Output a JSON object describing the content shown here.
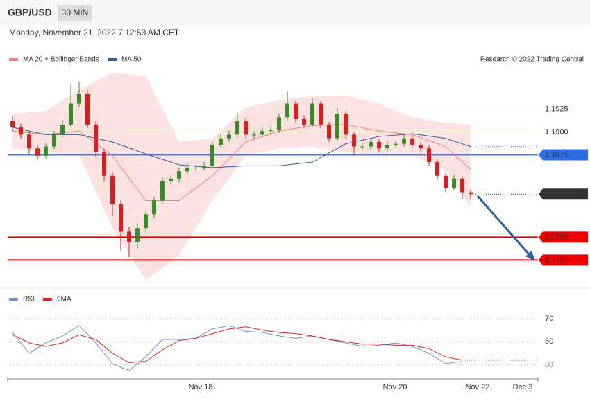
{
  "header": {
    "symbol": "GBP/USD",
    "timeframe": "30 MIN"
  },
  "timestamp": "Monday, November 21, 2022 7:12:53 AM CET",
  "credit": "Research © 2022 Trading Central",
  "chart_data": [
    {
      "type": "candlestick",
      "open": [
        1.1912,
        1.1905,
        1.1897,
        1.1882,
        1.1874,
        1.1884,
        1.1897,
        1.1908,
        1.1931,
        1.1942,
        1.1908,
        1.1878,
        1.1852,
        1.1821,
        1.1791,
        1.178,
        1.1795,
        1.181,
        1.1825,
        1.1846,
        1.1849,
        1.1857,
        1.1861,
        1.1861,
        1.1863,
        1.1886,
        1.1893,
        1.1897,
        1.1912,
        1.1897,
        1.1897,
        1.1901,
        1.1902,
        1.1916,
        1.1931,
        1.1914,
        1.1908,
        1.1931,
        1.1908,
        1.1893,
        1.192,
        1.1897,
        1.1884,
        1.1884,
        1.1889,
        1.1882,
        1.1886,
        1.1887,
        1.1893,
        1.1886,
        1.1882,
        1.1867,
        1.1852,
        1.1839,
        1.1849,
        1.1834
      ],
      "high": [
        1.1917,
        1.1909,
        1.19,
        1.1886,
        1.1888,
        1.1901,
        1.1913,
        1.1952,
        1.1955,
        1.1946,
        1.1912,
        1.1882,
        1.1856,
        1.1825,
        1.1796,
        1.18,
        1.1814,
        1.1829,
        1.185,
        1.1853,
        1.1861,
        1.1865,
        1.1864,
        1.1867,
        1.189,
        1.1897,
        1.1902,
        1.1921,
        1.1915,
        1.1901,
        1.1905,
        1.1906,
        1.192,
        1.1944,
        1.1934,
        1.1918,
        1.1937,
        1.1934,
        1.1911,
        1.1926,
        1.1923,
        1.19,
        1.1888,
        1.1893,
        1.1892,
        1.189,
        1.189,
        1.1897,
        1.1896,
        1.1889,
        1.1885,
        1.187,
        1.1855,
        1.1853,
        1.1852,
        1.1836
      ],
      "low": [
        1.1901,
        1.1893,
        1.1876,
        1.1869,
        1.1871,
        1.1881,
        1.1894,
        1.1905,
        1.1927,
        1.1904,
        1.1873,
        1.1846,
        1.1808,
        1.177,
        1.1763,
        1.1772,
        1.179,
        1.1806,
        1.1822,
        1.1843,
        1.1845,
        1.1854,
        1.1857,
        1.1858,
        1.186,
        1.1883,
        1.1889,
        1.1894,
        1.1893,
        1.1892,
        1.1894,
        1.1897,
        1.1899,
        1.1912,
        1.191,
        1.1904,
        1.1905,
        1.1904,
        1.1889,
        1.189,
        1.1893,
        1.1874,
        1.188,
        1.188,
        1.1878,
        1.1879,
        1.1883,
        1.1884,
        1.1883,
        1.1878,
        1.1863,
        1.1848,
        1.1834,
        1.1836,
        1.1826,
        1.1826
      ],
      "close": [
        1.1905,
        1.1897,
        1.1882,
        1.1874,
        1.1884,
        1.1897,
        1.1908,
        1.1931,
        1.1942,
        1.1908,
        1.1878,
        1.1852,
        1.1821,
        1.1791,
        1.178,
        1.1795,
        1.181,
        1.1825,
        1.1846,
        1.1849,
        1.1857,
        1.1861,
        1.1861,
        1.1863,
        1.1886,
        1.1893,
        1.1897,
        1.1912,
        1.1897,
        1.1897,
        1.1901,
        1.1902,
        1.1916,
        1.1931,
        1.1914,
        1.1908,
        1.1931,
        1.1908,
        1.1893,
        1.192,
        1.1897,
        1.1884,
        1.1884,
        1.1889,
        1.1882,
        1.1886,
        1.1887,
        1.1893,
        1.1886,
        1.1882,
        1.1867,
        1.1852,
        1.1839,
        1.1849,
        1.1834,
        1.1832
      ],
      "up_color": "#3b8a2a",
      "down_color": "#d81e1e",
      "series": [
        {
          "name": "MA 20 + Bollinger Bands",
          "color": "#f08080",
          "band_color": "#fde2e2",
          "values": [
            1.1901,
            1.1897,
            1.1901,
            1.1874,
            1.1825,
            1.1825,
            1.1852,
            1.1889,
            1.1901,
            1.1907,
            1.1908,
            1.1901,
            1.1897,
            1.1884,
            1.1859
          ],
          "upper": [
            1.192,
            1.1923,
            1.1946,
            1.1965,
            1.1961,
            1.1889,
            1.1893,
            1.1927,
            1.1935,
            1.1939,
            1.194,
            1.1931,
            1.1916,
            1.191,
            1.1908
          ],
          "lower": [
            1.1882,
            1.1878,
            1.1874,
            1.1795,
            1.1738,
            1.1765,
            1.1825,
            1.1874,
            1.1882,
            1.1884,
            1.1878,
            1.1874,
            1.1874,
            1.1859,
            1.1818
          ]
        },
        {
          "name": "MA 50",
          "color": "#2c5e9e",
          "values": [
            1.1905,
            1.1897,
            1.1897,
            1.1889,
            1.1876,
            1.1864,
            1.1861,
            1.1863,
            1.1863,
            1.1867,
            1.1887,
            1.1895,
            1.1898,
            1.1893,
            1.1884
          ]
        }
      ],
      "levels": [
        {
          "value": 1.1925,
          "color": "#d3ddb5",
          "label_color": "#4a9a1a"
        },
        {
          "value": 1.19,
          "label": "1.1900",
          "color": "#d3ddb5",
          "label_color": "#4a9a1a"
        },
        {
          "value": 1.1875,
          "color": "#4a7ee6",
          "tag": "#2f6fe6"
        },
        {
          "value": 1.1785,
          "color": "#e60000",
          "tag": "#ee0000"
        },
        {
          "value": 1.176,
          "label": "1.1760",
          "color": "#e60000",
          "tag": "#ee0000"
        }
      ],
      "ylim": [
        1.173,
        1.197
      ],
      "xtick_labels": [
        "Nov 18",
        "Nov 20",
        "Nov 22",
        "Dec 3"
      ]
    },
    {
      "type": "line",
      "series": [
        {
          "name": "RSI",
          "color": "#6b8fd8",
          "values": [
            58,
            40,
            49,
            55,
            64,
            49,
            31,
            25,
            37,
            52,
            52,
            53,
            61,
            64,
            59,
            58,
            55,
            53,
            55,
            52,
            49,
            46,
            47,
            49,
            46,
            40,
            31,
            33
          ]
        },
        {
          "name": "9MA",
          "color": "#e02020",
          "values": [
            56,
            49,
            46,
            49,
            56,
            52,
            40,
            32,
            33,
            43,
            51,
            53,
            57,
            61,
            63,
            60,
            58,
            57,
            55,
            52,
            50,
            48,
            48,
            47,
            47,
            44,
            37,
            34
          ]
        }
      ],
      "ylim": [
        19,
        94
      ],
      "yticks": [
        30,
        50,
        70
      ],
      "grid": true
    }
  ]
}
